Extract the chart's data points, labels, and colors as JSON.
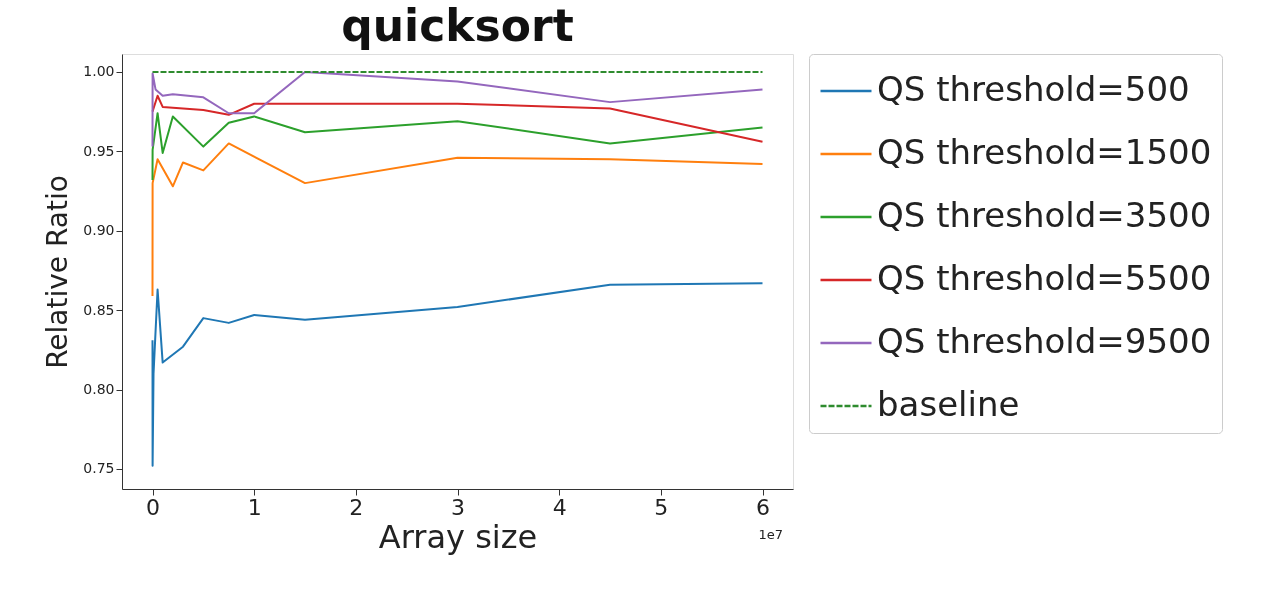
{
  "chart_data": {
    "type": "line",
    "title": "quicksort",
    "xlabel": "Array size",
    "ylabel": "Relative Ratio",
    "annotations": [
      "1e7"
    ],
    "xlim": [
      -0.3,
      6.3
    ],
    "ylim": [
      0.7374,
      1.0113
    ],
    "xticks": [
      0,
      1,
      2,
      3,
      4,
      5,
      6
    ],
    "yticks": [
      0.75,
      {
        "value": 0.8,
        "label": "0.80"
      },
      0.85,
      {
        "value": 0.9,
        "label": "0.90"
      },
      0.95,
      {
        "value": 1.0,
        "label": "1.00"
      }
    ],
    "grid": false,
    "legend": "right",
    "series": [
      {
        "name": "QS threshold=500",
        "color": "#1f77b4",
        "line_style": "solid",
        "x": [
          0,
          0.001,
          0.01,
          0.05,
          0.1,
          0.3,
          0.5,
          0.75,
          1,
          1.5,
          3,
          4.5,
          6
        ],
        "values": [
          0.831,
          0.752,
          0.81,
          0.863,
          0.817,
          0.827,
          0.845,
          0.842,
          0.847,
          0.844,
          0.852,
          0.866,
          0.867
        ]
      },
      {
        "name": "QS threshold=1500",
        "color": "#ff7f0e",
        "line_style": "solid",
        "x": [
          0,
          0.001,
          0.05,
          0.2,
          0.3,
          0.5,
          0.75,
          1.5,
          3,
          4.5,
          6
        ],
        "values": [
          0.859,
          0.93,
          0.945,
          0.928,
          0.943,
          0.938,
          0.955,
          0.93,
          0.946,
          0.945,
          0.942
        ]
      },
      {
        "name": "QS threshold=3500",
        "color": "#2ca02c",
        "line_style": "solid",
        "x": [
          0,
          0.001,
          0.05,
          0.1,
          0.2,
          0.5,
          0.75,
          1,
          1.5,
          3,
          4.5,
          6
        ],
        "values": [
          0.932,
          0.951,
          0.974,
          0.949,
          0.972,
          0.953,
          0.968,
          0.972,
          0.962,
          0.969,
          0.955,
          0.965
        ]
      },
      {
        "name": "QS threshold=5500",
        "color": "#d62728",
        "line_style": "solid",
        "x": [
          0,
          0.05,
          0.1,
          0.5,
          0.75,
          1,
          3,
          4.5,
          6
        ],
        "values": [
          0.975,
          0.985,
          0.978,
          0.976,
          0.973,
          0.98,
          0.98,
          0.977,
          0.956
        ]
      },
      {
        "name": "QS threshold=9500",
        "color": "#9467bd",
        "line_style": "solid",
        "x": [
          0,
          0.001,
          0.03,
          0.1,
          0.2,
          0.5,
          0.75,
          1,
          1.5,
          3,
          4.5,
          6
        ],
        "values": [
          0.953,
          0.999,
          0.989,
          0.985,
          0.986,
          0.984,
          0.974,
          0.974,
          1.0,
          0.994,
          0.981,
          0.989
        ]
      },
      {
        "name": "baseline",
        "color": "#2e8b2e",
        "line_style": "dashed",
        "x": [
          0,
          6
        ],
        "values": [
          1.0,
          1.0
        ]
      }
    ]
  }
}
